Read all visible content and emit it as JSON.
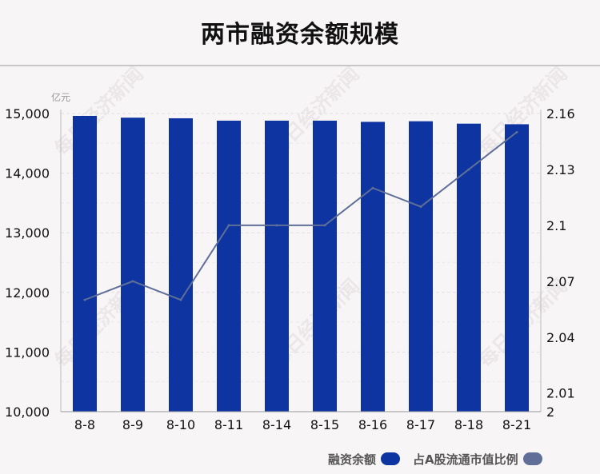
{
  "title": "两市融资余额规模",
  "watermark": "每日经济新闻",
  "chart_data": {
    "type": "bar",
    "title": "两市融资余额规模",
    "left_unit": "亿元",
    "categories": [
      "8-8",
      "8-9",
      "8-10",
      "8-11",
      "8-14",
      "8-15",
      "8-16",
      "8-17",
      "8-18",
      "8-21"
    ],
    "series": [
      {
        "name": "融资余额",
        "type": "bar",
        "axis": "left",
        "color": "#0d34a0",
        "values": [
          14960,
          14930,
          14920,
          14880,
          14880,
          14880,
          14860,
          14870,
          14830,
          14820
        ]
      },
      {
        "name": "占A股流通市值比例",
        "type": "line",
        "axis": "right",
        "color": "#5f6f97",
        "values": [
          2.06,
          2.07,
          2.06,
          2.1,
          2.1,
          2.1,
          2.12,
          2.11,
          2.13,
          2.15
        ]
      }
    ],
    "y_left": {
      "ylim": [
        10000,
        15000
      ],
      "ticks": [
        "10,000",
        "11,000",
        "12,000",
        "13,000",
        "14,000",
        "15,000"
      ]
    },
    "y_right": {
      "ylim": [
        2,
        2.16
      ],
      "ticks": [
        {
          "value": 2,
          "label": "2"
        },
        {
          "value": 2.01,
          "label": "2.01"
        },
        {
          "value": 2.04,
          "label": "2.04"
        },
        {
          "value": 2.07,
          "label": "2.07"
        },
        {
          "value": 2.1,
          "label": "2.1"
        },
        {
          "value": 2.13,
          "label": "2.13"
        },
        {
          "value": 2.16,
          "label": "2.16"
        }
      ]
    },
    "grid": true,
    "legend_position": "bottom-right"
  }
}
